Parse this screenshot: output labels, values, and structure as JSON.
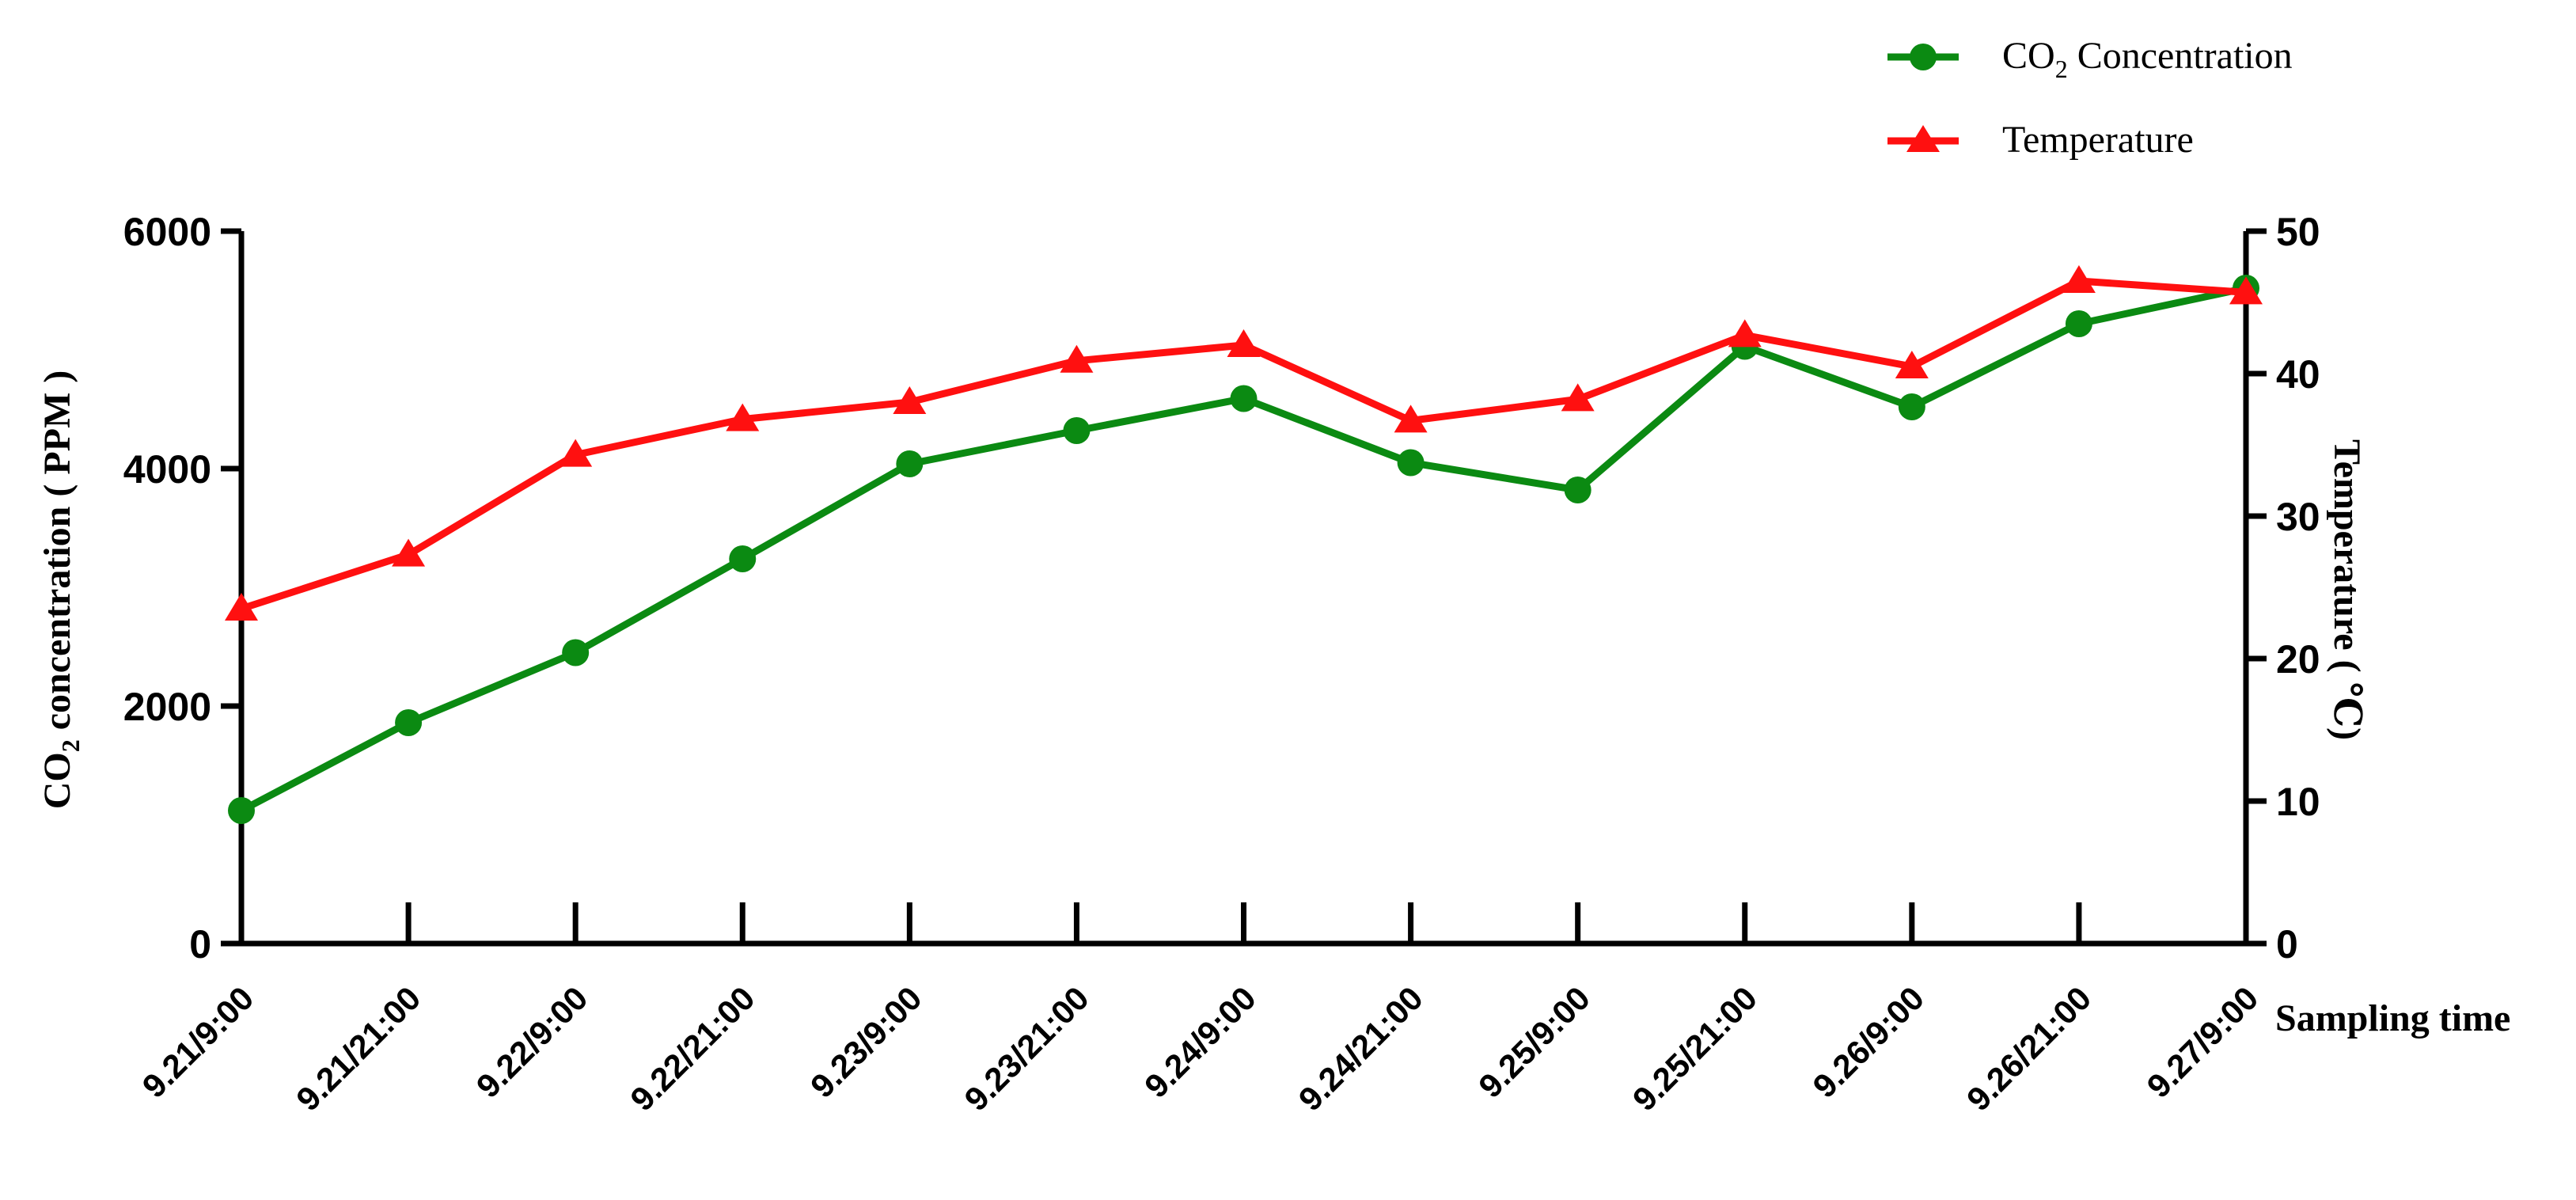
{
  "chart_data": {
    "type": "line",
    "categories": [
      "9.21/9:00",
      "9.21/21:00",
      "9.22/9:00",
      "9.22/21:00",
      "9.23/9:00",
      "9.23/21:00",
      "9.24/9:00",
      "9.24/21:00",
      "9.25/9:00",
      "9.25/21:00",
      "9.26/9:00",
      "9.26/21:00",
      "9.27/9:00"
    ],
    "xlabel": "Sampling time",
    "ylabel_left": {
      "prefix": "CO",
      "sub": "2",
      "suffix": " concentration ( PPM )"
    },
    "ylabel_right": "Temperature ( ℃)",
    "ylim_left": [
      0,
      6000
    ],
    "ylim_right": [
      0,
      50
    ],
    "yticks_left": [
      "0",
      "2000",
      "4000",
      "6000"
    ],
    "yticks_right": [
      "0",
      "10",
      "20",
      "30",
      "40",
      "50"
    ],
    "grid": false,
    "legend_placement": "top-right",
    "series": [
      {
        "name": {
          "prefix": "CO",
          "sub": "2",
          "suffix": " Concentration"
        },
        "axis": "left",
        "marker": "circle",
        "color": "#0b8a12",
        "values": [
          1120,
          1860,
          2450,
          3240,
          4040,
          4320,
          4590,
          4050,
          3820,
          5030,
          4520,
          5220,
          5520
        ]
      },
      {
        "name": "Temperature",
        "axis": "right",
        "marker": "triangle",
        "color": "#ff1010",
        "values": [
          23.5,
          27.3,
          34.3,
          36.8,
          38.0,
          40.9,
          42.0,
          36.7,
          38.2,
          42.7,
          40.5,
          46.5,
          45.7
        ]
      }
    ]
  }
}
